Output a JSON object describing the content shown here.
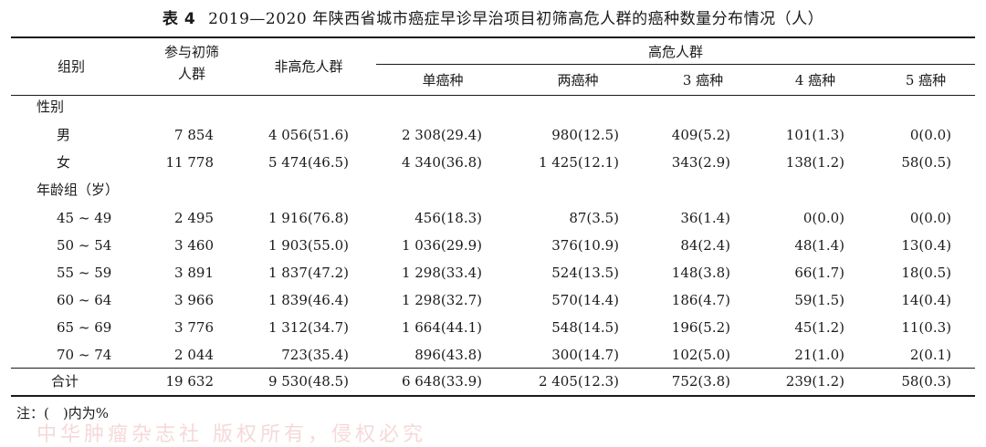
{
  "title": {
    "number": "表 4",
    "text": "2019—2020 年陕西省城市癌症早诊早治项目初筛高危人群的癌种数量分布情况（人）"
  },
  "headers": {
    "group": "组别",
    "participants": [
      "参与初筛",
      "人群"
    ],
    "non_high_risk": "非高危人群",
    "high_risk": "高危人群",
    "sub": [
      "单癌种",
      "两癌种",
      "3 癌种",
      "4 癌种",
      "5 癌种"
    ]
  },
  "sections": {
    "sex": "性别",
    "age": "年龄组（岁）"
  },
  "rows": {
    "male": [
      "男",
      "7 854",
      "4 056(51.6)",
      "2 308(29.4)",
      "980(12.5)",
      "409(5.2)",
      "101(1.3)",
      "0(0.0)"
    ],
    "female": [
      "女",
      "11 778",
      "5 474(46.5)",
      "4 340(36.8)",
      "1 425(12.1)",
      "343(2.9)",
      "138(1.2)",
      "58(0.5)"
    ],
    "a45": [
      "45 ~ 49",
      "2 495",
      "1 916(76.8)",
      "456(18.3)",
      "87(3.5)",
      "36(1.4)",
      "0(0.0)",
      "0(0.0)"
    ],
    "a50": [
      "50 ~ 54",
      "3 460",
      "1 903(55.0)",
      "1 036(29.9)",
      "376(10.9)",
      "84(2.4)",
      "48(1.4)",
      "13(0.4)"
    ],
    "a55": [
      "55 ~ 59",
      "3 891",
      "1 837(47.2)",
      "1 298(33.4)",
      "524(13.5)",
      "148(3.8)",
      "66(1.7)",
      "18(0.5)"
    ],
    "a60": [
      "60 ~ 64",
      "3 966",
      "1 839(46.4)",
      "1 298(32.7)",
      "570(14.4)",
      "186(4.7)",
      "59(1.5)",
      "14(0.4)"
    ],
    "a65": [
      "65 ~ 69",
      "3 776",
      "1 312(34.7)",
      "1 664(44.1)",
      "548(14.5)",
      "196(5.2)",
      "45(1.2)",
      "11(0.3)"
    ],
    "a70": [
      "70 ~ 74",
      "2 044",
      "723(35.4)",
      "896(43.8)",
      "300(14.7)",
      "102(5.0)",
      "21(1.0)",
      "2(0.1)"
    ],
    "total": [
      "合计",
      "19 632",
      "9 530(48.5)",
      "6 648(33.9)",
      "2 405(12.3)",
      "752(3.8)",
      "239(1.2)",
      "58(0.3)"
    ]
  },
  "note": "注：(　)内为%",
  "watermark": "中华肿瘤杂志社 版权所有，侵权必究"
}
